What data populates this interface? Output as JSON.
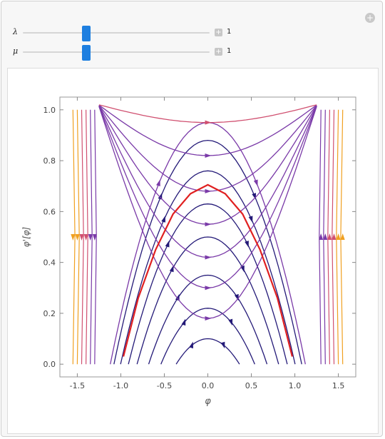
{
  "controls": {
    "lambda": {
      "symbol": "λ",
      "value": "1",
      "fraction": 0.34
    },
    "mu": {
      "symbol": "μ",
      "value": "1",
      "fraction": 0.34
    },
    "plus_symbol": "+",
    "options_symbol": "+"
  },
  "chart_data": {
    "type": "stream",
    "xlabel": "φ",
    "ylabel": "φ'[φ]",
    "xlim": [
      -1.7,
      1.7
    ],
    "ylim": [
      -0.05,
      1.05
    ],
    "x_ticks": [
      "-1.5",
      "-1.0",
      "-0.5",
      "0.0",
      "0.5",
      "1.0",
      "1.5"
    ],
    "y_ticks": [
      "0.0",
      "0.2",
      "0.4",
      "0.6",
      "0.8",
      "1.0"
    ],
    "x_tick_values": [
      -1.5,
      -1.0,
      -0.5,
      0.0,
      0.5,
      1.0,
      1.5
    ],
    "y_tick_values": [
      0.0,
      0.2,
      0.4,
      0.6,
      0.8,
      1.0
    ],
    "highlight_curve": {
      "color": "#e02020",
      "points": [
        [
          -0.97,
          0.03
        ],
        [
          -0.8,
          0.26
        ],
        [
          -0.6,
          0.45
        ],
        [
          -0.4,
          0.59
        ],
        [
          -0.2,
          0.67
        ],
        [
          0.0,
          0.705
        ],
        [
          0.2,
          0.67
        ],
        [
          0.4,
          0.59
        ],
        [
          0.6,
          0.45
        ],
        [
          0.8,
          0.26
        ],
        [
          0.97,
          0.03
        ]
      ]
    },
    "closed_levels": [
      0.1,
      0.22,
      0.35,
      0.5,
      0.63,
      0.76,
      0.88,
      0.95
    ],
    "open_levels": [
      0.18,
      0.3,
      0.42,
      0.55,
      0.68,
      0.82,
      0.95
    ],
    "edge_stream_x": [
      -1.55,
      -1.5,
      -1.45,
      -1.4,
      -1.35,
      -1.3,
      1.3,
      1.35,
      1.4,
      1.45,
      1.5,
      1.55
    ],
    "colors": {
      "dark": "#241a78",
      "mid": "#7a3aa8",
      "warm": "#d05070",
      "hot": "#f0a020"
    }
  }
}
